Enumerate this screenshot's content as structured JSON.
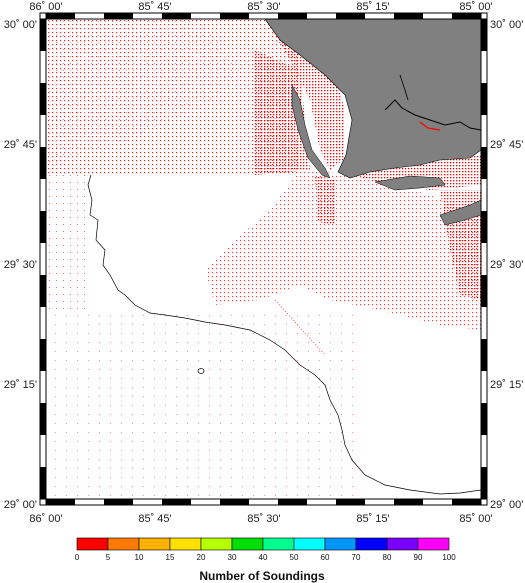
{
  "map": {
    "lon_labels": [
      "86˚ 00'",
      "85˚ 45'",
      "85˚ 30'",
      "85˚ 15'",
      "85˚ 00'"
    ],
    "lat_labels": [
      "30˚ 00'",
      "29˚ 45'",
      "29˚ 30'",
      "29˚ 15'",
      "29˚ 00'"
    ],
    "colors": {
      "land": "#808080",
      "soundings_high": "#ff0000",
      "soundings_sparse": "#ff9a9a",
      "coastline": "#000000",
      "river": "#000000"
    }
  },
  "colorbar": {
    "title": "Number of Soundings",
    "ticks": [
      "0",
      "5",
      "10",
      "15",
      "20",
      "30",
      "40",
      "50",
      "60",
      "70",
      "80",
      "90",
      "100"
    ],
    "colors": [
      "#ff0000",
      "#ff7a00",
      "#ffb000",
      "#ffe100",
      "#b4ff00",
      "#00dd00",
      "#00ff90",
      "#00ffff",
      "#0096ff",
      "#0000ff",
      "#7a00ff",
      "#ff00ff"
    ]
  }
}
